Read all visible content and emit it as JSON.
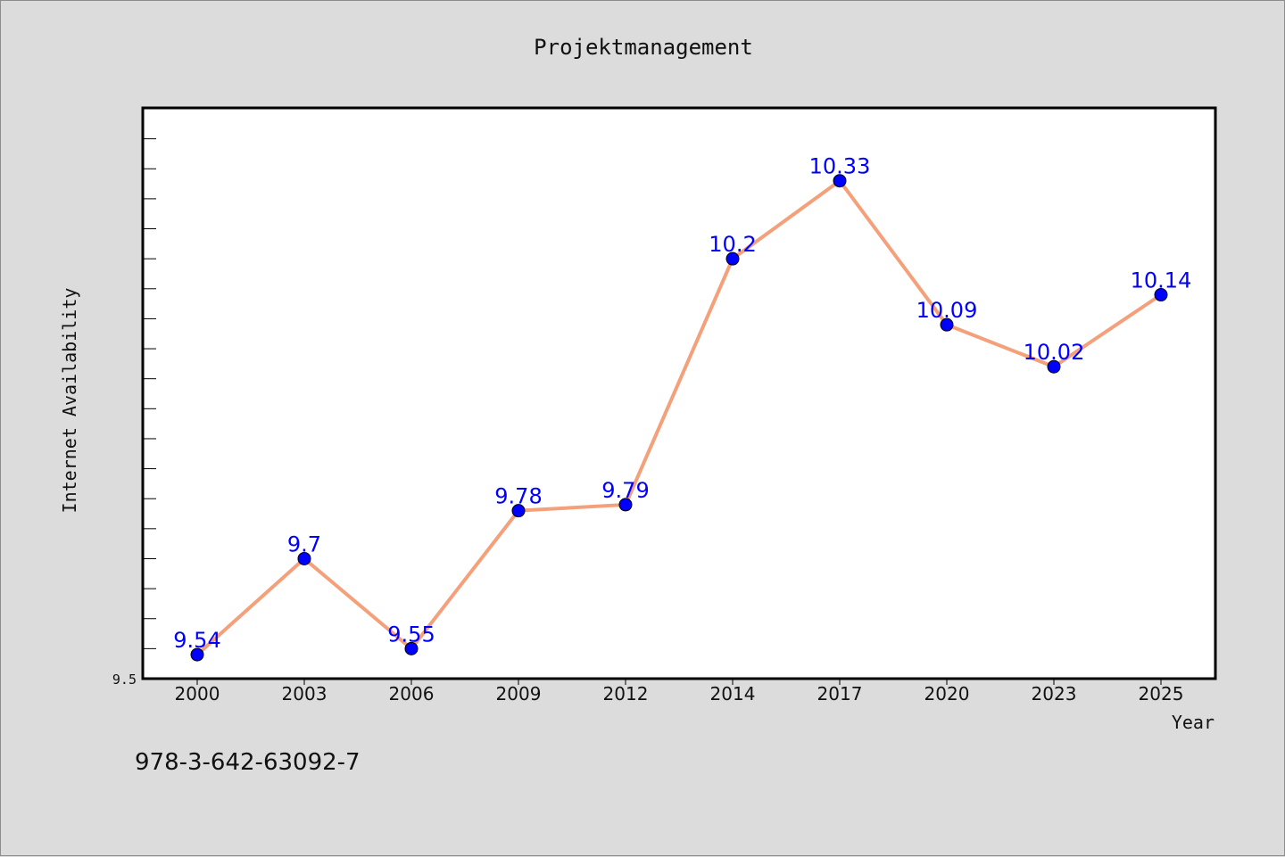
{
  "page": {
    "isbn": "978-3-642-63092-7"
  },
  "colors": {
    "background": "#dcdcdc",
    "plot_background": "#ffffff",
    "line": "#f4a07a",
    "marker": "#0000ff",
    "data_label": "#0000ff"
  },
  "chart_data": {
    "type": "line",
    "title": "Projektmanagement",
    "xlabel": "Year",
    "ylabel": "Internet Availability",
    "categories": [
      "2000",
      "2003",
      "2006",
      "2009",
      "2012",
      "2014",
      "2017",
      "2020",
      "2023",
      "2025"
    ],
    "series": [
      {
        "values": [
          9.54,
          9.7,
          9.55,
          9.78,
          9.79,
          10.2,
          10.33,
          10.09,
          10.02,
          10.14
        ],
        "labels": [
          "9.54",
          "9.7",
          "9.55",
          "9.78",
          "9.79",
          "10.2",
          "10.33",
          "10.09",
          "10.02",
          "10.14"
        ]
      }
    ],
    "ylim": [
      9.5,
      10.45
    ],
    "yticks_labeled": [
      "9.5"
    ],
    "grid": false,
    "legend": "none"
  }
}
